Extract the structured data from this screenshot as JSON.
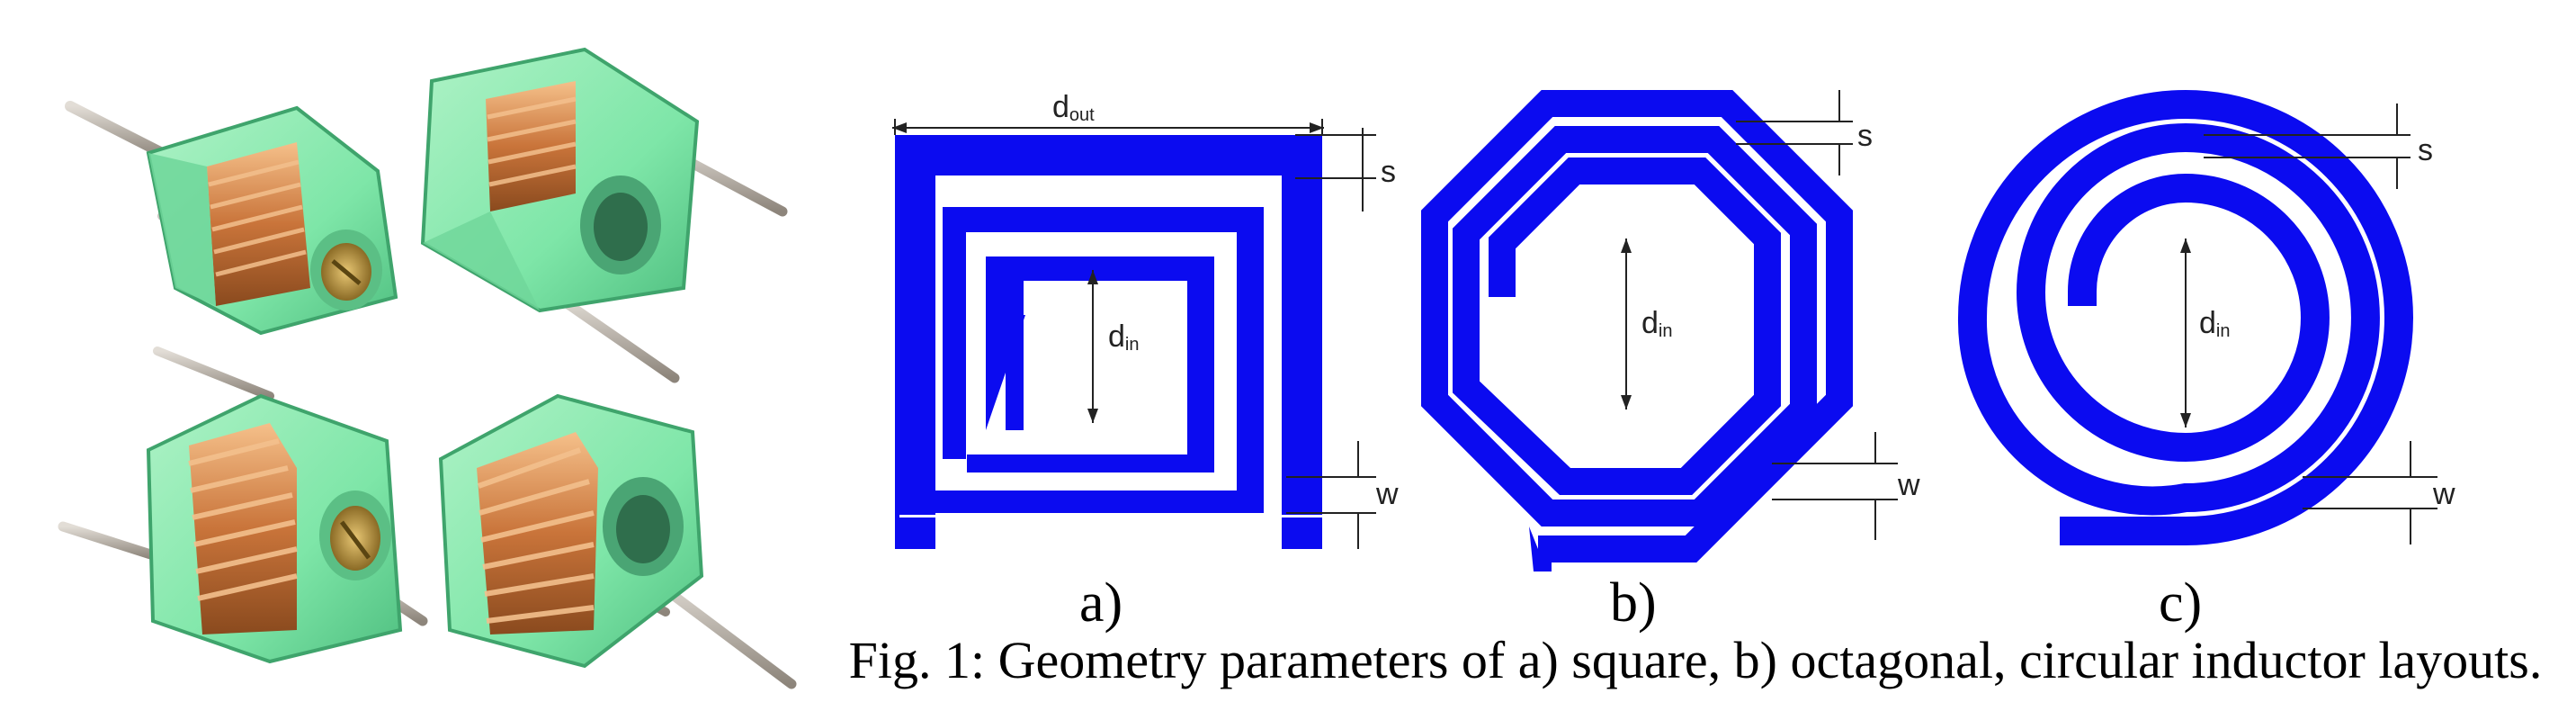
{
  "colors": {
    "inductor": "#0b0bf0",
    "body_green": "#7ee6a8",
    "body_green_dark": "#4fbf80",
    "copper": "#c9743a",
    "copper_light": "#f0b27a",
    "pin": "#b3aba0",
    "dimension_line": "#222222"
  },
  "photo": {
    "description_icon": "variable-inductor-components",
    "count": 4
  },
  "dimensions": {
    "d_out": {
      "base": "d",
      "sub": "out"
    },
    "d_in": {
      "base": "d",
      "sub": "in"
    },
    "spacing": "s",
    "width": "w"
  },
  "panels": [
    {
      "id": "square",
      "label": "a)"
    },
    {
      "id": "octagonal",
      "label": "b)"
    },
    {
      "id": "circular",
      "label": "c)"
    }
  ],
  "caption": "Fig. 1: Geometry parameters of a) square, b) octagonal, circular inductor layouts."
}
